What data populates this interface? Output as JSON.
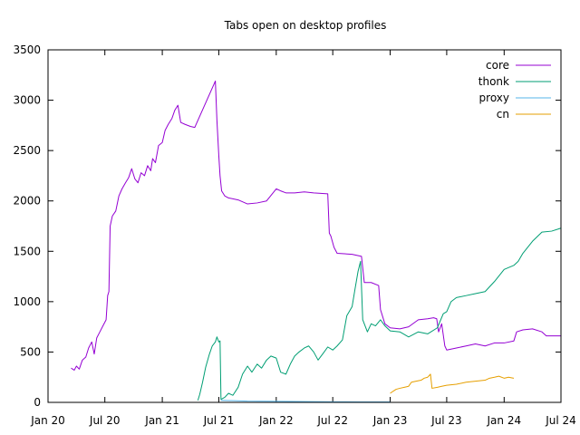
{
  "chart_data": {
    "type": "line",
    "title": "Tabs open on desktop profiles",
    "xlabel": "",
    "ylabel": "",
    "x_range": [
      "2020-01-01",
      "2024-07-01"
    ],
    "y_range": [
      0,
      3500
    ],
    "grid": false,
    "legend_position": "top-right",
    "x_ticks": [
      {
        "date": "2020-01-01",
        "label": "Jan 20"
      },
      {
        "date": "2020-07-01",
        "label": "Jul 20"
      },
      {
        "date": "2021-01-01",
        "label": "Jan 21"
      },
      {
        "date": "2021-07-01",
        "label": "Jul 21"
      },
      {
        "date": "2022-01-01",
        "label": "Jan 22"
      },
      {
        "date": "2022-07-01",
        "label": "Jul 22"
      },
      {
        "date": "2023-01-01",
        "label": "Jan 23"
      },
      {
        "date": "2023-07-01",
        "label": "Jul 23"
      },
      {
        "date": "2024-01-01",
        "label": "Jan 24"
      },
      {
        "date": "2024-07-01",
        "label": "Jul 24"
      }
    ],
    "y_ticks": [
      0,
      500,
      1000,
      1500,
      2000,
      2500,
      3000,
      3500
    ],
    "series": [
      {
        "name": "core",
        "color": "#9400d3",
        "points": [
          [
            "2020-03-15",
            340
          ],
          [
            "2020-03-25",
            320
          ],
          [
            "2020-04-01",
            360
          ],
          [
            "2020-04-10",
            330
          ],
          [
            "2020-04-20",
            420
          ],
          [
            "2020-05-01",
            450
          ],
          [
            "2020-05-10",
            540
          ],
          [
            "2020-05-20",
            600
          ],
          [
            "2020-05-28",
            480
          ],
          [
            "2020-06-05",
            640
          ],
          [
            "2020-06-15",
            700
          ],
          [
            "2020-06-25",
            760
          ],
          [
            "2020-07-05",
            820
          ],
          [
            "2020-07-10",
            1060
          ],
          [
            "2020-07-14",
            1100
          ],
          [
            "2020-07-18",
            1750
          ],
          [
            "2020-07-25",
            1850
          ],
          [
            "2020-08-05",
            1900
          ],
          [
            "2020-08-15",
            2050
          ],
          [
            "2020-08-25",
            2120
          ],
          [
            "2020-09-05",
            2180
          ],
          [
            "2020-09-15",
            2230
          ],
          [
            "2020-09-25",
            2320
          ],
          [
            "2020-10-05",
            2220
          ],
          [
            "2020-10-15",
            2180
          ],
          [
            "2020-10-25",
            2280
          ],
          [
            "2020-11-05",
            2250
          ],
          [
            "2020-11-15",
            2350
          ],
          [
            "2020-11-25",
            2300
          ],
          [
            "2020-12-01",
            2420
          ],
          [
            "2020-12-10",
            2380
          ],
          [
            "2020-12-20",
            2550
          ],
          [
            "2021-01-01",
            2580
          ],
          [
            "2021-01-10",
            2700
          ],
          [
            "2021-01-20",
            2760
          ],
          [
            "2021-02-01",
            2820
          ],
          [
            "2021-02-10",
            2900
          ],
          [
            "2021-02-20",
            2950
          ],
          [
            "2021-03-01",
            2780
          ],
          [
            "2021-03-15",
            2760
          ],
          [
            "2021-04-01",
            2740
          ],
          [
            "2021-04-15",
            2730
          ],
          [
            "2021-06-20",
            3190
          ],
          [
            "2021-06-25",
            2800
          ],
          [
            "2021-07-01",
            2450
          ],
          [
            "2021-07-05",
            2250
          ],
          [
            "2021-07-10",
            2100
          ],
          [
            "2021-07-20",
            2050
          ],
          [
            "2021-08-01",
            2030
          ],
          [
            "2021-09-01",
            2010
          ],
          [
            "2021-10-01",
            1970
          ],
          [
            "2021-11-01",
            1980
          ],
          [
            "2021-12-01",
            2000
          ],
          [
            "2022-01-01",
            2120
          ],
          [
            "2022-01-15",
            2100
          ],
          [
            "2022-02-01",
            2080
          ],
          [
            "2022-03-01",
            2080
          ],
          [
            "2022-04-01",
            2090
          ],
          [
            "2022-05-01",
            2080
          ],
          [
            "2022-06-15",
            2070
          ],
          [
            "2022-06-20",
            1680
          ],
          [
            "2022-06-25",
            1650
          ],
          [
            "2022-07-05",
            1540
          ],
          [
            "2022-07-15",
            1480
          ],
          [
            "2022-09-01",
            1470
          ],
          [
            "2022-10-01",
            1450
          ],
          [
            "2022-10-10",
            1190
          ],
          [
            "2022-11-01",
            1190
          ],
          [
            "2022-11-25",
            1160
          ],
          [
            "2022-12-01",
            920
          ],
          [
            "2022-12-15",
            780
          ],
          [
            "2023-01-01",
            740
          ],
          [
            "2023-02-01",
            730
          ],
          [
            "2023-03-01",
            750
          ],
          [
            "2023-04-01",
            820
          ],
          [
            "2023-05-01",
            830
          ],
          [
            "2023-05-20",
            840
          ],
          [
            "2023-05-30",
            830
          ],
          [
            "2023-06-05",
            700
          ],
          [
            "2023-06-15",
            780
          ],
          [
            "2023-06-25",
            560
          ],
          [
            "2023-07-01",
            520
          ],
          [
            "2023-08-01",
            540
          ],
          [
            "2023-09-01",
            560
          ],
          [
            "2023-10-01",
            580
          ],
          [
            "2023-11-01",
            560
          ],
          [
            "2023-12-01",
            590
          ],
          [
            "2024-01-01",
            590
          ],
          [
            "2024-02-01",
            610
          ],
          [
            "2024-02-10",
            700
          ],
          [
            "2024-03-01",
            720
          ],
          [
            "2024-04-01",
            730
          ],
          [
            "2024-05-01",
            700
          ],
          [
            "2024-05-15",
            660
          ],
          [
            "2024-07-01",
            660
          ]
        ]
      },
      {
        "name": "thonk",
        "color": "#009e73",
        "points": [
          [
            "2021-04-25",
            20
          ],
          [
            "2021-05-01",
            80
          ],
          [
            "2021-05-10",
            200
          ],
          [
            "2021-05-20",
            350
          ],
          [
            "2021-06-01",
            480
          ],
          [
            "2021-06-10",
            560
          ],
          [
            "2021-06-20",
            600
          ],
          [
            "2021-06-25",
            650
          ],
          [
            "2021-07-01",
            600
          ],
          [
            "2021-07-05",
            610
          ],
          [
            "2021-07-08",
            30
          ],
          [
            "2021-07-20",
            50
          ],
          [
            "2021-08-01",
            90
          ],
          [
            "2021-08-15",
            70
          ],
          [
            "2021-09-01",
            150
          ],
          [
            "2021-09-15",
            280
          ],
          [
            "2021-10-01",
            360
          ],
          [
            "2021-10-15",
            300
          ],
          [
            "2021-11-01",
            380
          ],
          [
            "2021-11-15",
            340
          ],
          [
            "2021-12-01",
            420
          ],
          [
            "2021-12-15",
            460
          ],
          [
            "2022-01-01",
            440
          ],
          [
            "2022-01-15",
            300
          ],
          [
            "2022-02-01",
            280
          ],
          [
            "2022-02-15",
            380
          ],
          [
            "2022-03-01",
            460
          ],
          [
            "2022-03-15",
            500
          ],
          [
            "2022-04-01",
            540
          ],
          [
            "2022-04-15",
            560
          ],
          [
            "2022-05-01",
            500
          ],
          [
            "2022-05-15",
            420
          ],
          [
            "2022-06-01",
            490
          ],
          [
            "2022-06-15",
            550
          ],
          [
            "2022-07-01",
            520
          ],
          [
            "2022-07-15",
            560
          ],
          [
            "2022-08-01",
            620
          ],
          [
            "2022-08-15",
            860
          ],
          [
            "2022-09-01",
            950
          ],
          [
            "2022-09-10",
            1120
          ],
          [
            "2022-09-20",
            1300
          ],
          [
            "2022-09-28",
            1400
          ],
          [
            "2022-10-05",
            820
          ],
          [
            "2022-10-20",
            700
          ],
          [
            "2022-11-01",
            780
          ],
          [
            "2022-11-15",
            760
          ],
          [
            "2022-12-01",
            820
          ],
          [
            "2022-12-15",
            760
          ],
          [
            "2023-01-01",
            710
          ],
          [
            "2023-02-01",
            700
          ],
          [
            "2023-03-01",
            650
          ],
          [
            "2023-04-01",
            700
          ],
          [
            "2023-05-01",
            680
          ],
          [
            "2023-06-01",
            740
          ],
          [
            "2023-06-20",
            880
          ],
          [
            "2023-07-01",
            900
          ],
          [
            "2023-07-15",
            1000
          ],
          [
            "2023-08-01",
            1040
          ],
          [
            "2023-09-01",
            1060
          ],
          [
            "2023-10-01",
            1080
          ],
          [
            "2023-11-01",
            1100
          ],
          [
            "2023-12-01",
            1200
          ],
          [
            "2024-01-01",
            1320
          ],
          [
            "2024-02-01",
            1360
          ],
          [
            "2024-02-15",
            1400
          ],
          [
            "2024-03-01",
            1480
          ],
          [
            "2024-04-01",
            1600
          ],
          [
            "2024-05-01",
            1690
          ],
          [
            "2024-06-01",
            1700
          ],
          [
            "2024-07-01",
            1730
          ]
        ]
      },
      {
        "name": "proxy",
        "color": "#56b4e9",
        "points": [
          [
            "2021-07-08",
            20
          ],
          [
            "2021-08-01",
            18
          ],
          [
            "2021-10-01",
            12
          ],
          [
            "2022-01-01",
            10
          ],
          [
            "2022-04-01",
            8
          ],
          [
            "2022-07-01",
            6
          ],
          [
            "2022-10-01",
            5
          ],
          [
            "2023-01-01",
            4
          ]
        ]
      },
      {
        "name": "cn",
        "color": "#e69f00",
        "points": [
          [
            "2023-01-01",
            90
          ],
          [
            "2023-01-10",
            110
          ],
          [
            "2023-01-20",
            130
          ],
          [
            "2023-02-01",
            140
          ],
          [
            "2023-02-15",
            150
          ],
          [
            "2023-03-01",
            160
          ],
          [
            "2023-03-10",
            200
          ],
          [
            "2023-03-25",
            210
          ],
          [
            "2023-04-10",
            220
          ],
          [
            "2023-04-20",
            240
          ],
          [
            "2023-05-01",
            250
          ],
          [
            "2023-05-10",
            280
          ],
          [
            "2023-05-15",
            140
          ],
          [
            "2023-06-01",
            150
          ],
          [
            "2023-06-15",
            160
          ],
          [
            "2023-07-01",
            170
          ],
          [
            "2023-08-01",
            180
          ],
          [
            "2023-09-01",
            200
          ],
          [
            "2023-10-01",
            210
          ],
          [
            "2023-11-01",
            220
          ],
          [
            "2023-11-15",
            240
          ],
          [
            "2023-12-01",
            250
          ],
          [
            "2023-12-15",
            260
          ],
          [
            "2024-01-01",
            240
          ],
          [
            "2024-01-15",
            250
          ],
          [
            "2024-02-01",
            240
          ]
        ]
      }
    ]
  }
}
